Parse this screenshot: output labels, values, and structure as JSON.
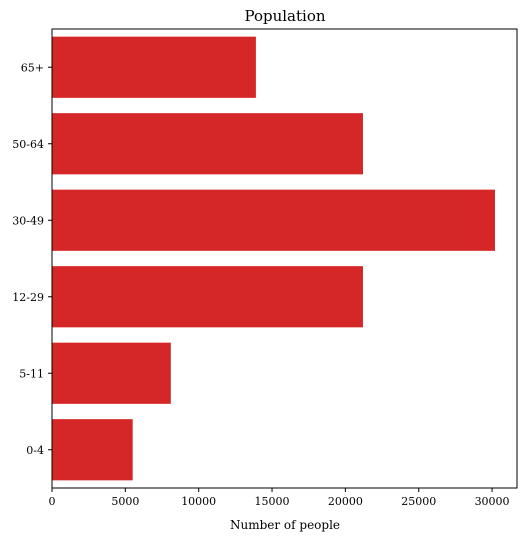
{
  "chart_data": {
    "type": "bar",
    "orientation": "horizontal",
    "title": "Population",
    "xlabel": "Number of people",
    "ylabel": "",
    "categories": [
      "0-4",
      "5-11",
      "12-29",
      "30-49",
      "50-64",
      "65+"
    ],
    "values": [
      5500,
      8100,
      21200,
      30200,
      21200,
      13900
    ],
    "xlim": [
      0,
      31700
    ],
    "xticks": [
      0,
      5000,
      10000,
      15000,
      20000,
      25000,
      30000
    ],
    "bar_color": "#d62728",
    "grid": false,
    "legend": "none"
  }
}
